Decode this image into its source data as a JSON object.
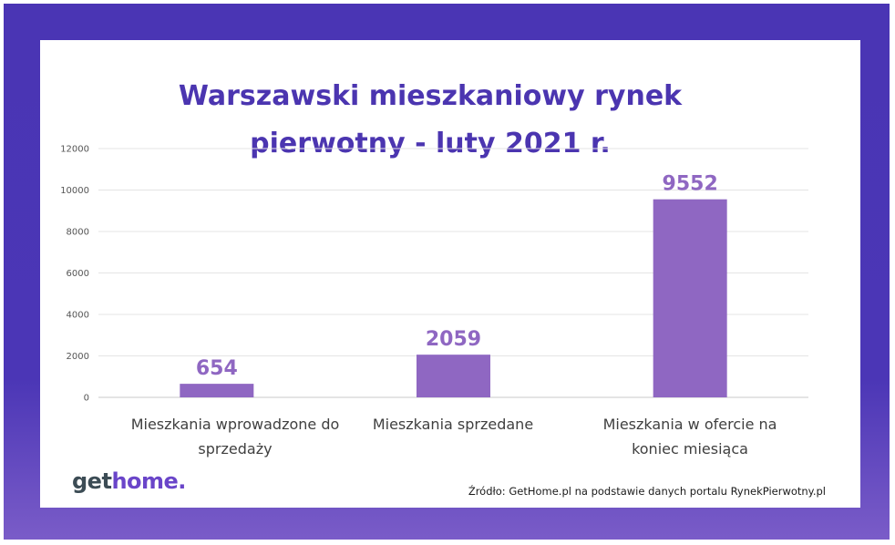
{
  "title_line1": "Warszawski mieszkaniowy rynek",
  "title_line2": "pierwotny  - luty 2021 r.",
  "logo": {
    "part1": "get",
    "part2": "home."
  },
  "source": "Źródło: GetHome.pl na podstawie danych portalu RynekPierwotny.pl",
  "colors": {
    "frame": "#4a35b4",
    "title": "#4b35b0",
    "bar": "#8f67c2",
    "label": "#8f67c2"
  },
  "chart_data": {
    "type": "bar",
    "title": "Warszawski mieszkaniowy rynek pierwotny  - luty 2021 r.",
    "categories_lines": [
      [
        "Mieszkania wprowadzone do",
        "sprzedaży"
      ],
      [
        "Mieszkania sprzedane"
      ],
      [
        "Mieszkania w ofercie na",
        "koniec miesiąca"
      ]
    ],
    "values": [
      654,
      2059,
      9552
    ],
    "value_labels": [
      "654",
      "2059",
      "9552"
    ],
    "yticks": [
      "0",
      "2000",
      "4000",
      "6000",
      "8000",
      "10000",
      "12000"
    ],
    "ylim": [
      0,
      12000
    ],
    "grid": true
  }
}
